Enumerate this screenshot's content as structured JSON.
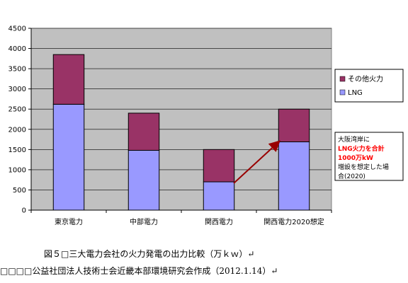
{
  "chart_data": {
    "type": "bar",
    "stacked": true,
    "categories": [
      "東京電力",
      "中部電力",
      "関西電力",
      "関西電力2020想定"
    ],
    "series": [
      {
        "name": "LNG",
        "values": [
          2620,
          1480,
          700,
          1690
        ],
        "color": "#9999ff"
      },
      {
        "name": "その他火力",
        "values": [
          1230,
          920,
          800,
          810
        ],
        "color": "#993366"
      }
    ],
    "ylim": [
      0,
      4500
    ],
    "yticks": [
      0,
      500,
      1000,
      1500,
      2000,
      2500,
      3000,
      3500,
      4000,
      4500
    ],
    "grid": true,
    "plot_background": "#c0c0c0",
    "legend_position": "right",
    "annotation": {
      "lines": [
        "大阪湾岸に",
        "LNG火力を合計",
        "1000万kW",
        "増設を想定した場",
        "合(2020)"
      ],
      "highlight_color": "#ff0000",
      "arrow_color": "#990000"
    }
  },
  "captions": {
    "line1": "図５□三大電力会社の火力発電の出力比較（万ｋｗ）↵",
    "line2": "□□□□公益社団法人技術士会近畿本部環境研究会作成（2012.1.14）↵"
  }
}
